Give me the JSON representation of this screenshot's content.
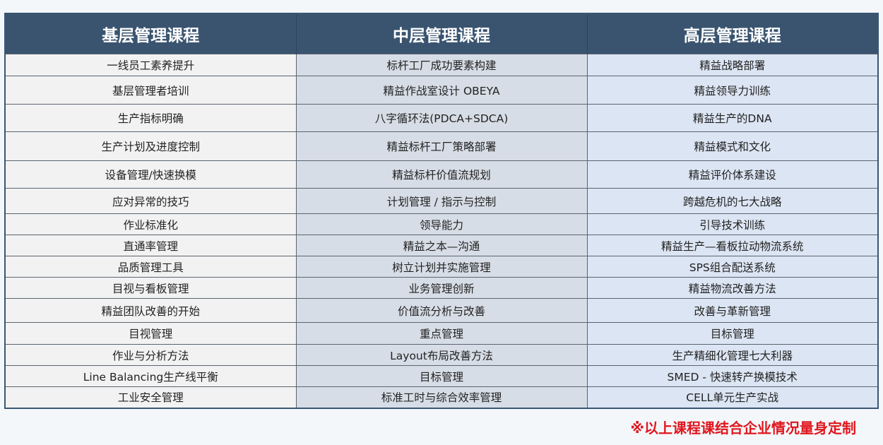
{
  "headers": [
    "基层管理课程",
    "中层管理课程",
    "高层管理课程"
  ],
  "rows": [
    [
      "一线员工素养提升",
      "标杆工厂成功要素构建",
      "精益战略部署"
    ],
    [
      "基层管理者培训",
      "精益作战室设计 OBEYA",
      "精益领导力训练"
    ],
    [
      "生产指标明确",
      "八字循环法(PDCA+SDCA)",
      "精益生产的DNA"
    ],
    [
      "生产计划及进度控制",
      "精益标杆工厂策略部署",
      "精益模式和文化"
    ],
    [
      "设备管理/快速换模",
      "精益标杆价值流规划",
      "精益评价体系建设"
    ],
    [
      "应对异常的技巧",
      "计划管理 / 指示与控制",
      "跨越危机的七大战略"
    ],
    [
      "作业标准化",
      "领导能力",
      "引导技术训练"
    ],
    [
      "直通率管理",
      "精益之本—沟通",
      "精益生产—看板拉动物流系统"
    ],
    [
      "品质管理工具",
      "树立计划并实施管理",
      "SPS组合配送系统"
    ],
    [
      "目视与看板管理",
      "业务管理创新",
      "精益物流改善方法"
    ],
    [
      "精益团队改善的开始",
      "价值流分析与改善",
      "改善与革新管理"
    ],
    [
      "目视管理",
      "重点管理",
      "目标管理"
    ],
    [
      "作业与分析方法",
      "Layout布局改善方法",
      "生产精细化管理七大利器"
    ],
    [
      "Line Balancing生产线平衡",
      "目标管理",
      "SMED - 快速转产换模技术"
    ],
    [
      "工业安全管理",
      "标准工时与综合效率管理",
      "CELL单元生产实战"
    ]
  ],
  "note": "※以上课程课结合企业情况量身定制",
  "colors": {
    "header": "#3a5470",
    "note": "#e0161e"
  }
}
